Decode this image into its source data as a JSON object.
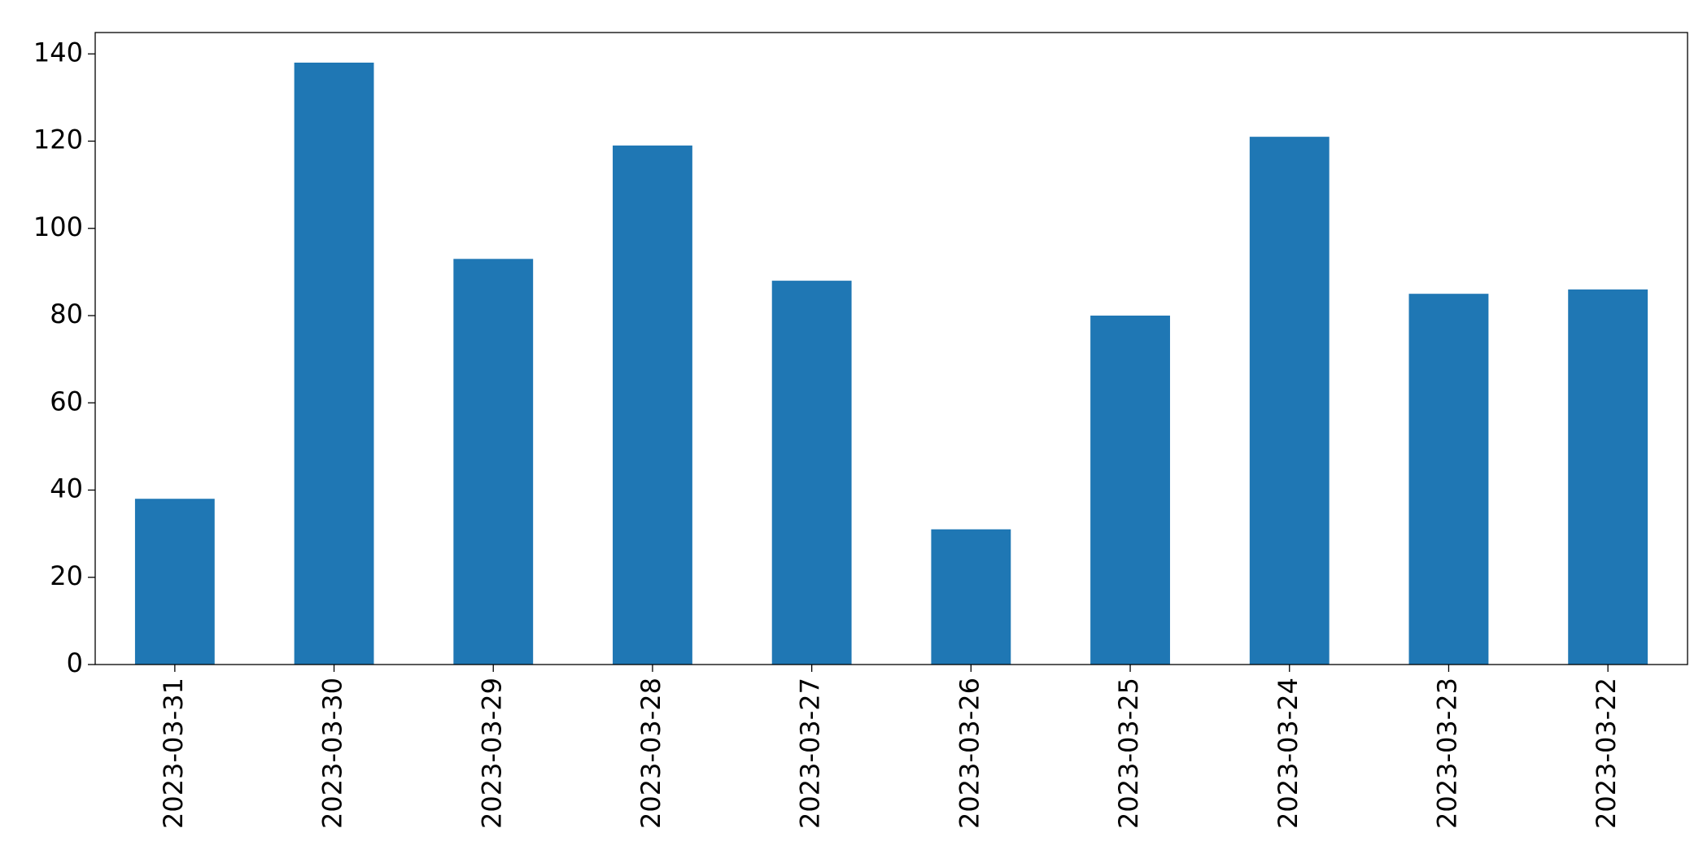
{
  "chart_data": {
    "type": "bar",
    "categories": [
      "2023-03-31",
      "2023-03-30",
      "2023-03-29",
      "2023-03-28",
      "2023-03-27",
      "2023-03-26",
      "2023-03-25",
      "2023-03-24",
      "2023-03-23",
      "2023-03-22"
    ],
    "values": [
      38,
      138,
      93,
      119,
      88,
      31,
      80,
      121,
      85,
      86
    ],
    "color": "#1f77b4",
    "ylim": [
      0,
      144.9
    ],
    "yticks": [
      0,
      20,
      40,
      60,
      80,
      100,
      120,
      140
    ],
    "grid": false
  }
}
